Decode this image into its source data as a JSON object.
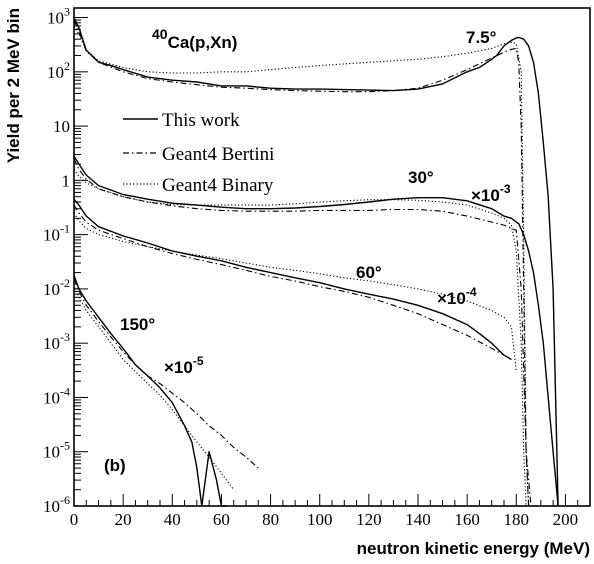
{
  "chart_data": {
    "type": "line",
    "title": "Ca(p,Xn)",
    "title_superscript": "40",
    "panel_label": "(b)",
    "xlabel": "neutron kinetic energy (MeV)",
    "ylabel": "Yield per 2 MeV bin",
    "xlim": [
      0,
      210
    ],
    "ylim": [
      1e-06,
      1500
    ],
    "yscale": "log",
    "grid": false,
    "legend_position": "upper-left",
    "x_ticks": [
      "0",
      "20",
      "40",
      "60",
      "80",
      "100",
      "120",
      "140",
      "160",
      "180",
      "200"
    ],
    "y_ticks": [
      {
        "base": "10",
        "exp": "-6"
      },
      {
        "base": "10",
        "exp": "-5"
      },
      {
        "base": "10",
        "exp": "-4"
      },
      {
        "base": "10",
        "exp": "-3"
      },
      {
        "base": "10",
        "exp": "-2"
      },
      {
        "base": "10",
        "exp": "-1"
      },
      {
        "base": "1",
        "exp": ""
      },
      {
        "base": "10",
        "exp": ""
      },
      {
        "base": "10",
        "exp": "2"
      },
      {
        "base": "10",
        "exp": "3"
      }
    ],
    "legend": [
      {
        "label": "This work",
        "style": "solid"
      },
      {
        "label": "Geant4 Bertini",
        "style": "dashdot"
      },
      {
        "label": "Geant4 Binary",
        "style": "dotted"
      }
    ],
    "groups": [
      {
        "angle_label": "7.5°",
        "scale_label": "",
        "series": [
          {
            "name": "This work",
            "style": "solid",
            "x": [
              0,
              2,
              5,
              10,
              15,
              20,
              30,
              40,
              50,
              60,
              70,
              80,
              90,
              100,
              110,
              120,
              130,
              140,
              150,
              160,
              165,
              170,
              172,
              175,
              178,
              180,
              181,
              183,
              185,
              187,
              189,
              191,
              193,
              195,
              197
            ],
            "y": [
              1000,
              650,
              250,
              150,
              130,
              110,
              80,
              70,
              65,
              55,
              55,
              50,
              48,
              48,
              47,
              46,
              45,
              48,
              60,
              100,
              120,
              170,
              200,
              300,
              380,
              420,
              430,
              400,
              300,
              150,
              40,
              5,
              0.5,
              0.01,
              1e-06
            ]
          },
          {
            "name": "Geant4 Bertini",
            "style": "dashdot",
            "x": [
              0,
              2,
              5,
              10,
              20,
              30,
              40,
              50,
              60,
              70,
              80,
              90,
              100,
              110,
              120,
              130,
              140,
              150,
              160,
              170,
              175,
              178,
              180,
              181,
              182,
              183,
              184,
              185
            ],
            "y": [
              900,
              550,
              240,
              150,
              100,
              75,
              65,
              58,
              52,
              50,
              47,
              45,
              44,
              43,
              43,
              45,
              50,
              70,
              110,
              180,
              230,
              260,
              270,
              150,
              10,
              0.01,
              1e-05,
              1e-06
            ]
          },
          {
            "name": "Geant4 Binary",
            "style": "dotted",
            "x": [
              0,
              2,
              5,
              10,
              20,
              30,
              40,
              50,
              60,
              70,
              80,
              90,
              100,
              110,
              120,
              130,
              140,
              150,
              160,
              170,
              175,
              178,
              180,
              182,
              183,
              184,
              185
            ],
            "y": [
              700,
              500,
              250,
              160,
              120,
              100,
              95,
              95,
              100,
              100,
              110,
              120,
              130,
              140,
              150,
              160,
              170,
              190,
              220,
              270,
              330,
              350,
              330,
              100,
              0.1,
              1e-05,
              1e-06
            ]
          }
        ]
      },
      {
        "angle_label": "30°",
        "scale_label": "×10",
        "scale_exp": "-3",
        "series": [
          {
            "name": "This work",
            "style": "solid",
            "x": [
              0,
              2,
              5,
              10,
              20,
              30,
              40,
              50,
              60,
              70,
              80,
              90,
              100,
              110,
              120,
              130,
              140,
              150,
              160,
              170,
              175,
              178,
              180,
              181,
              183,
              185,
              187,
              189,
              191,
              193,
              195,
              197
            ],
            "y": [
              2.8,
              2.0,
              1.25,
              0.8,
              0.55,
              0.45,
              0.38,
              0.35,
              0.32,
              0.3,
              0.3,
              0.31,
              0.33,
              0.36,
              0.4,
              0.45,
              0.48,
              0.48,
              0.42,
              0.3,
              0.22,
              0.2,
              0.17,
              0.16,
              0.1,
              0.05,
              0.02,
              0.005,
              0.001,
              0.0001,
              1e-05,
              1e-06
            ]
          },
          {
            "name": "Geant4 Bertini",
            "style": "dashdot",
            "x": [
              0,
              2,
              5,
              10,
              20,
              30,
              40,
              50,
              60,
              70,
              80,
              90,
              100,
              110,
              120,
              130,
              140,
              150,
              160,
              170,
              175,
              178,
              180,
              182,
              184,
              186
            ],
            "y": [
              2.5,
              1.6,
              1.05,
              0.7,
              0.5,
              0.4,
              0.34,
              0.3,
              0.28,
              0.27,
              0.27,
              0.27,
              0.28,
              0.28,
              0.28,
              0.29,
              0.29,
              0.27,
              0.22,
              0.17,
              0.15,
              0.13,
              0.12,
              0.01,
              1e-05,
              1e-06
            ]
          },
          {
            "name": "Geant4 Binary",
            "style": "dotted",
            "x": [
              0,
              2,
              5,
              10,
              20,
              30,
              40,
              50,
              60,
              70,
              80,
              90,
              100,
              110,
              120,
              130,
              140,
              150,
              160,
              170,
              175,
              178,
              180,
              182,
              183,
              184
            ],
            "y": [
              1.6,
              1.2,
              0.9,
              0.7,
              0.5,
              0.4,
              0.36,
              0.35,
              0.35,
              0.35,
              0.35,
              0.37,
              0.4,
              0.42,
              0.44,
              0.44,
              0.43,
              0.4,
              0.35,
              0.25,
              0.2,
              0.15,
              0.05,
              0.001,
              1e-05,
              1e-06
            ]
          }
        ]
      },
      {
        "angle_label": "60°",
        "scale_label": "×10",
        "scale_exp": "-4",
        "series": [
          {
            "name": "This work",
            "style": "solid",
            "x": [
              0,
              2,
              5,
              10,
              20,
              30,
              40,
              50,
              60,
              70,
              80,
              90,
              100,
              110,
              120,
              130,
              140,
              150,
              160,
              165,
              170,
              175,
              178
            ],
            "y": [
              0.45,
              0.35,
              0.22,
              0.14,
              0.095,
              0.07,
              0.05,
              0.04,
              0.033,
              0.025,
              0.02,
              0.016,
              0.013,
              0.01,
              0.008,
              0.0065,
              0.005,
              0.0035,
              0.0022,
              0.0015,
              0.001,
              0.0006,
              0.0005
            ]
          },
          {
            "name": "Geant4 Bertini",
            "style": "dashdot",
            "x": [
              0,
              2,
              5,
              10,
              20,
              30,
              40,
              50,
              60,
              70,
              80,
              90,
              100,
              110,
              120,
              130,
              140,
              150,
              160,
              170,
              175
            ],
            "y": [
              0.35,
              0.25,
              0.17,
              0.12,
              0.085,
              0.06,
              0.045,
              0.035,
              0.028,
              0.022,
              0.017,
              0.014,
              0.011,
              0.009,
              0.007,
              0.005,
              0.0035,
              0.0022,
              0.0014,
              0.0008,
              0.0006
            ]
          },
          {
            "name": "Geant4 Binary",
            "style": "dotted",
            "x": [
              0,
              2,
              5,
              10,
              20,
              30,
              40,
              50,
              60,
              70,
              80,
              90,
              100,
              110,
              120,
              130,
              140,
              150,
              160,
              170,
              175,
              178,
              180
            ],
            "y": [
              0.25,
              0.18,
              0.13,
              0.1,
              0.075,
              0.06,
              0.05,
              0.042,
              0.036,
              0.03,
              0.025,
              0.022,
              0.019,
              0.016,
              0.014,
              0.012,
              0.01,
              0.008,
              0.006,
              0.004,
              0.003,
              0.002,
              0.0003
            ]
          }
        ]
      },
      {
        "angle_label": "150°",
        "scale_label": "×10",
        "scale_exp": "-5",
        "series": [
          {
            "name": "This work",
            "style": "solid",
            "x": [
              0,
              2,
              5,
              10,
              15,
              20,
              25,
              30,
              35,
              40,
              45,
              48,
              50,
              52,
              55,
              58,
              60,
              62
            ],
            "y": [
              0.018,
              0.01,
              0.006,
              0.003,
              0.0015,
              0.0008,
              0.0004,
              0.00025,
              0.00015,
              8e-05,
              3e-05,
              1.5e-05,
              5e-06,
              1e-06,
              1e-05,
              3e-06,
              1e-06,
              1e-06
            ]
          },
          {
            "name": "Geant4 Bertini",
            "style": "dashdot",
            "x": [
              0,
              2,
              5,
              10,
              15,
              20,
              25,
              30,
              35,
              40,
              45,
              50,
              55,
              60,
              65,
              70,
              75
            ],
            "y": [
              0.015,
              0.009,
              0.005,
              0.0025,
              0.0013,
              0.0007,
              0.0004,
              0.00025,
              0.00018,
              0.00012,
              8e-05,
              5e-05,
              3e-05,
              2e-05,
              1.2e-05,
              8e-06,
              5e-06
            ]
          },
          {
            "name": "Geant4 Binary",
            "style": "dotted",
            "x": [
              0,
              2,
              5,
              10,
              15,
              20,
              25,
              30,
              35,
              40,
              45,
              50,
              55,
              60,
              65
            ],
            "y": [
              0.012,
              0.007,
              0.004,
              0.002,
              0.001,
              0.0005,
              0.0003,
              0.00018,
              0.00011,
              6e-05,
              3e-05,
              1.5e-05,
              8e-06,
              4e-06,
              2e-06
            ]
          }
        ]
      }
    ]
  }
}
